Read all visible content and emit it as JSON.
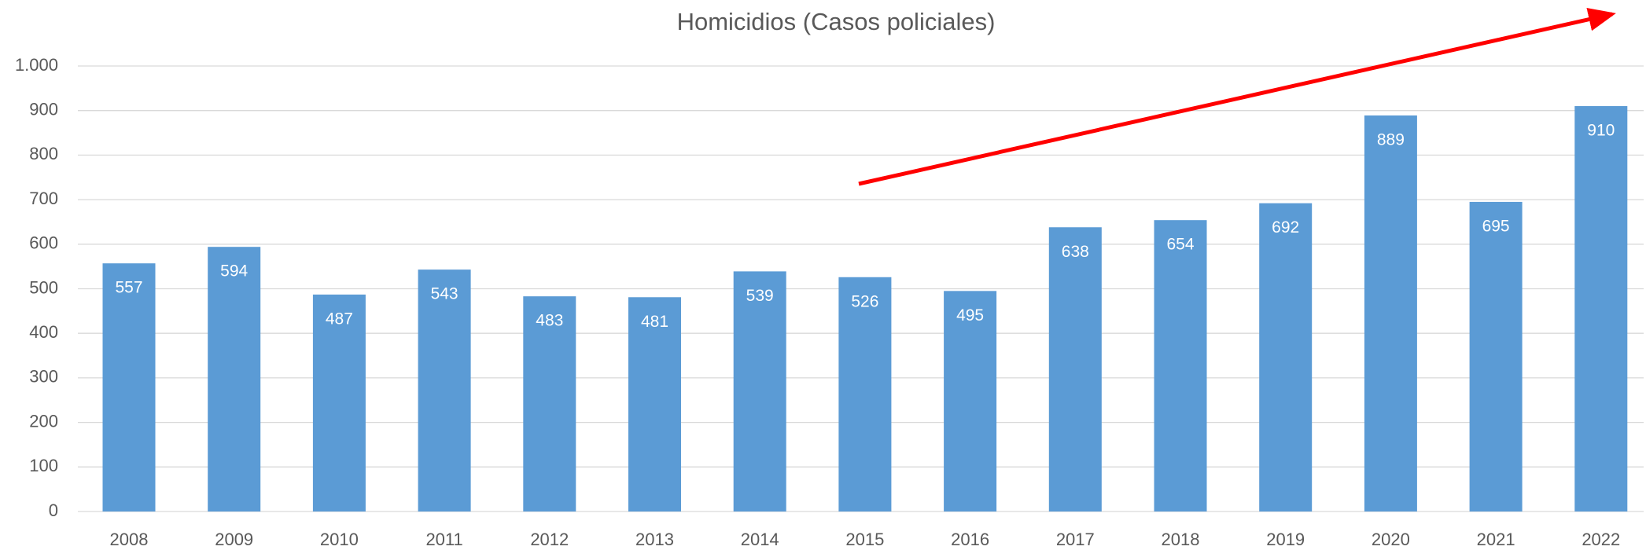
{
  "chart_data": {
    "type": "bar",
    "title": "Homicidios  (Casos policiales)",
    "categories": [
      "2008",
      "2009",
      "2010",
      "2011",
      "2012",
      "2013",
      "2014",
      "2015",
      "2016",
      "2017",
      "2018",
      "2019",
      "2020",
      "2021",
      "2022"
    ],
    "values": [
      557,
      594,
      487,
      543,
      483,
      481,
      539,
      526,
      495,
      638,
      654,
      692,
      889,
      695,
      910
    ],
    "color": "#5b9bd5",
    "ylim": [
      0,
      1000
    ],
    "yticks": [
      0,
      100,
      200,
      300,
      400,
      500,
      600,
      700,
      800,
      900,
      {
        "value": 1000,
        "label": "1.000"
      }
    ],
    "grid": true
  }
}
